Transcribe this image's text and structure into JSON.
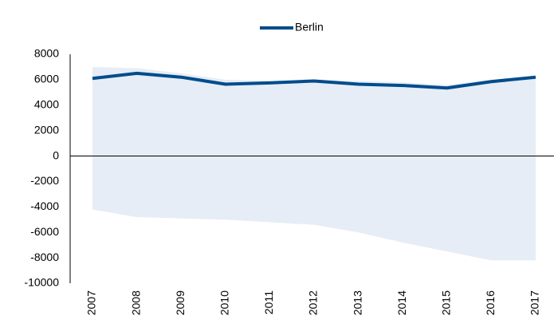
{
  "chart_data": {
    "type": "line",
    "categories": [
      "2007",
      "2008",
      "2009",
      "2010",
      "2011",
      "2012",
      "2013",
      "2014",
      "2015",
      "2016",
      "2017"
    ],
    "series": [
      {
        "name": "Berlin",
        "color": "#004c8c",
        "values": [
          6100,
          6500,
          6200,
          5650,
          5750,
          5900,
          5650,
          5550,
          5350,
          5850,
          6200
        ]
      }
    ],
    "band": {
      "color": "#e6edf6",
      "upper": [
        7000,
        6900,
        6500,
        6000,
        5900,
        6000,
        5900,
        5800,
        5600,
        6000,
        6300
      ],
      "lower": [
        -4200,
        -4800,
        -4900,
        -5000,
        -5200,
        -5400,
        -6000,
        -6800,
        -7500,
        -8200,
        -8200
      ]
    },
    "ylim": [
      -10000,
      8000
    ],
    "yticks": [
      8000,
      6000,
      4000,
      2000,
      0,
      -2000,
      -4000,
      -6000,
      -8000,
      -10000
    ],
    "legend": "top"
  }
}
